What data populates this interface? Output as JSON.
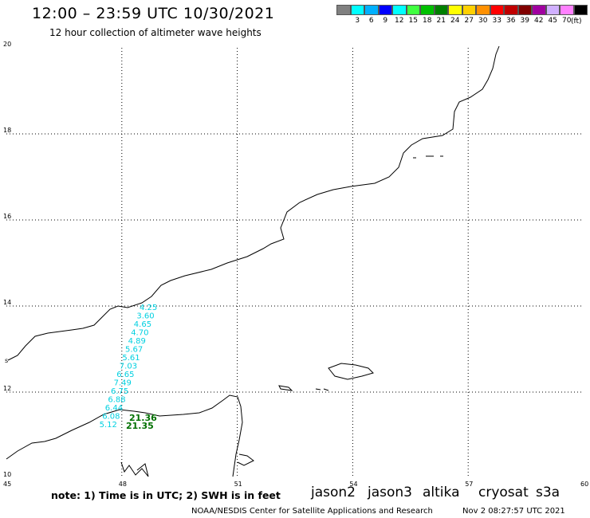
{
  "header": {
    "title": "12:00 – 23:59 UTC 10/30/2021",
    "subtitle": "12 hour collection of altimeter wave heights"
  },
  "scale": {
    "colors": [
      "#808080",
      "#00ffff",
      "#00b0ff",
      "#0000ff",
      "#00ffff",
      "#40ff40",
      "#00c000",
      "#008000",
      "#ffff00",
      "#ffd000",
      "#ff9000",
      "#ff0000",
      "#c00000",
      "#800000",
      "#a000a0",
      "#d0b0ff",
      "#ff80ff",
      "#000000"
    ],
    "labels": [
      "3",
      "6",
      "9",
      "12",
      "15",
      "18",
      "21",
      "24",
      "27",
      "30",
      "33",
      "36",
      "39",
      "42",
      "45",
      "70"
    ],
    "unit": "(ft)"
  },
  "map": {
    "lon_ticks": [
      "45",
      "48",
      "51",
      "54",
      "57",
      "60"
    ],
    "lat_ticks": [
      "20",
      "18",
      "16",
      "14",
      "12",
      "10"
    ],
    "lon_range": [
      45,
      60
    ],
    "lat_range": [
      10,
      20
    ],
    "side_label": "s"
  },
  "wave_labels_cyan": {
    "color": "#00d0e0",
    "values": [
      "4.25",
      "3.60",
      "4.65",
      "4.70",
      "4.89",
      "5.67",
      "5.61",
      "7.03",
      "6.65",
      "7.49",
      "6.75",
      "6.88",
      "6.44",
      "6.08",
      "5.12"
    ]
  },
  "wave_labels_green": {
    "color": "#007000",
    "values": [
      "21.36",
      "21.35"
    ]
  },
  "legend": {
    "note": "note: 1) Time is in UTC; 2) SWH is in feet",
    "satellites": [
      {
        "name": "jason2",
        "color": "#0000ff"
      },
      {
        "name": "jason3",
        "color": "#008000"
      },
      {
        "name": "altika",
        "color": "#ff9000"
      },
      {
        "name": "cryosat",
        "color": "#ff0000"
      },
      {
        "name": "s3a",
        "color": "#800000"
      }
    ]
  },
  "footer": {
    "credit": "NOAA/NESDIS Center for Satellite Applications and Research",
    "timestamp": "Nov  2 08:27:57 UTC 2021"
  }
}
